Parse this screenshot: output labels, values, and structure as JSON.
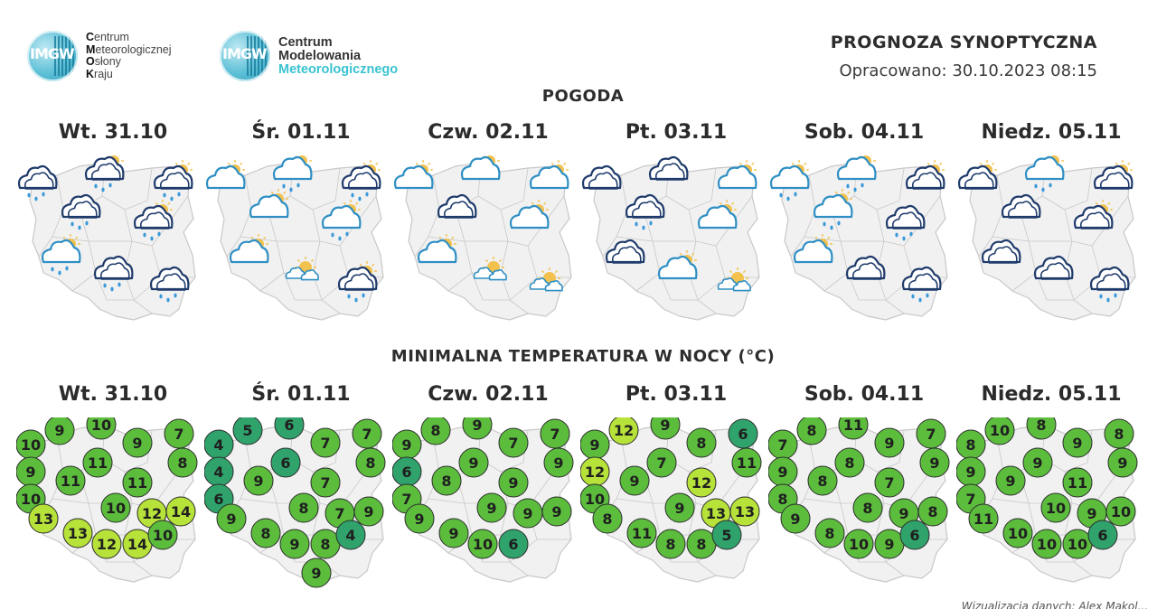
{
  "logos": {
    "imgw": {
      "badge": "IMGW",
      "lines": [
        {
          "initial": "C",
          "rest": "entrum"
        },
        {
          "initial": "M",
          "rest": "eteorologicznej"
        },
        {
          "initial": "O",
          "rest": "słony"
        },
        {
          "initial": "K",
          "rest": "raju"
        }
      ]
    },
    "cmm": {
      "badge": "IMGW",
      "line1": "Centrum",
      "line2": "Modelowania",
      "line3": "Meteorologicznego"
    }
  },
  "header": {
    "title": "PROGNOZA SYNOPTYCZNA",
    "issued": "Opracowano: 30.10.2023 08:15"
  },
  "weather_section": {
    "title": "POGODA"
  },
  "temp_section": {
    "title": "MINIMALNA TEMPERATURA W NOCY (°C)"
  },
  "days": [
    "Wt. 31.10",
    "Śr. 01.11",
    "Czw. 02.11",
    "Pt. 03.11",
    "Sob. 04.11",
    "Niedz. 05.11"
  ],
  "colors": {
    "map_fill": "#f1f1f1",
    "map_border": "#c8c8c8",
    "cloud_dark": "#1f3b6b",
    "cloud_light": "#2f8fc4",
    "sun": "#f2c14e",
    "rain": "#3a9ad9",
    "temp_cold": "#2fa36b",
    "temp_mid": "#5cbd3d",
    "temp_warm": "#b6e23a"
  },
  "weather": [
    [
      {
        "icon": "rain-cloud-dark"
      },
      {
        "icon": "sun-rain-cloud-dark"
      },
      {
        "icon": "sun-rain-cloud-dark"
      },
      {
        "icon": "rain-cloud-dark"
      },
      {
        "icon": "sun-rain-cloud-dark"
      },
      {
        "icon": "sun-rain-cloud-light"
      },
      {
        "icon": "rain-cloud-dark"
      },
      {
        "icon": "rain-cloud-dark"
      }
    ],
    [
      {
        "icon": "sun-cloud-light"
      },
      {
        "icon": "sun-rain-cloud-light"
      },
      {
        "icon": "sun-rain-cloud-dark"
      },
      {
        "icon": "sun-cloud-light"
      },
      {
        "icon": "sun-rain-cloud-light"
      },
      {
        "icon": "sun-cloud-light"
      },
      {
        "icon": "sun-small-clouds"
      },
      {
        "icon": "sun-rain-cloud-dark"
      }
    ],
    [
      {
        "icon": "sun-cloud-light"
      },
      {
        "icon": "sun-cloud-light"
      },
      {
        "icon": "sun-cloud-light"
      },
      {
        "icon": "cloud-dark"
      },
      {
        "icon": "sun-cloud-light"
      },
      {
        "icon": "sun-cloud-light"
      },
      {
        "icon": "sun-small-clouds"
      },
      {
        "icon": "sun-small-clouds"
      }
    ],
    [
      {
        "icon": "cloud-dark"
      },
      {
        "icon": "cloud-dark"
      },
      {
        "icon": "sun-cloud-light"
      },
      {
        "icon": "rain-cloud-dark"
      },
      {
        "icon": "sun-cloud-light"
      },
      {
        "icon": "cloud-dark"
      },
      {
        "icon": "sun-cloud-light"
      },
      {
        "icon": "sun-small-clouds"
      }
    ],
    [
      {
        "icon": "sun-rain-cloud-light"
      },
      {
        "icon": "sun-rain-cloud-light"
      },
      {
        "icon": "sun-cloud-dark"
      },
      {
        "icon": "sun-rain-cloud-light"
      },
      {
        "icon": "rain-cloud-dark"
      },
      {
        "icon": "sun-cloud-light"
      },
      {
        "icon": "cloud-dark"
      },
      {
        "icon": "rain-cloud-dark"
      }
    ],
    [
      {
        "icon": "sun-cloud-dark"
      },
      {
        "icon": "sun-rain-cloud-light"
      },
      {
        "icon": "sun-cloud-dark"
      },
      {
        "icon": "cloud-dark"
      },
      {
        "icon": "sun-cloud-dark"
      },
      {
        "icon": "cloud-dark"
      },
      {
        "icon": "cloud-dark"
      },
      {
        "icon": "rain-cloud-dark"
      }
    ]
  ],
  "temps": [
    [
      "10",
      "9",
      "10",
      "9",
      "7",
      "9",
      "11",
      "8",
      "10",
      "11",
      "11",
      "10",
      "13",
      "12",
      "14",
      "13",
      "12",
      "14",
      "10"
    ],
    [
      "4",
      "5",
      "6",
      "7",
      "7",
      "4",
      "6",
      "8",
      "6",
      "9",
      "7",
      "8",
      "9",
      "7",
      "9",
      "8",
      "9",
      "8",
      "4",
      "9"
    ],
    [
      "9",
      "8",
      "9",
      "7",
      "7",
      "6",
      "9",
      "9",
      "7",
      "8",
      "9",
      "9",
      "9",
      "9",
      "9",
      "9",
      "10",
      "6"
    ],
    [
      "9",
      "12",
      "9",
      "8",
      "6",
      "12",
      "7",
      "11",
      "10",
      "9",
      "12",
      "9",
      "8",
      "13",
      "13",
      "11",
      "8",
      "8",
      "5"
    ],
    [
      "7",
      "8",
      "11",
      "9",
      "7",
      "9",
      "8",
      "9",
      "8",
      "8",
      "7",
      "8",
      "9",
      "9",
      "8",
      "8",
      "10",
      "9",
      "6"
    ],
    [
      "8",
      "10",
      "8",
      "9",
      "8",
      "9",
      "9",
      "9",
      "7",
      "9",
      "11",
      "10",
      "11",
      "9",
      "10",
      "10",
      "10",
      "10",
      "6"
    ]
  ],
  "credit": "Wizualizacja danych: Alex Mąkol..."
}
